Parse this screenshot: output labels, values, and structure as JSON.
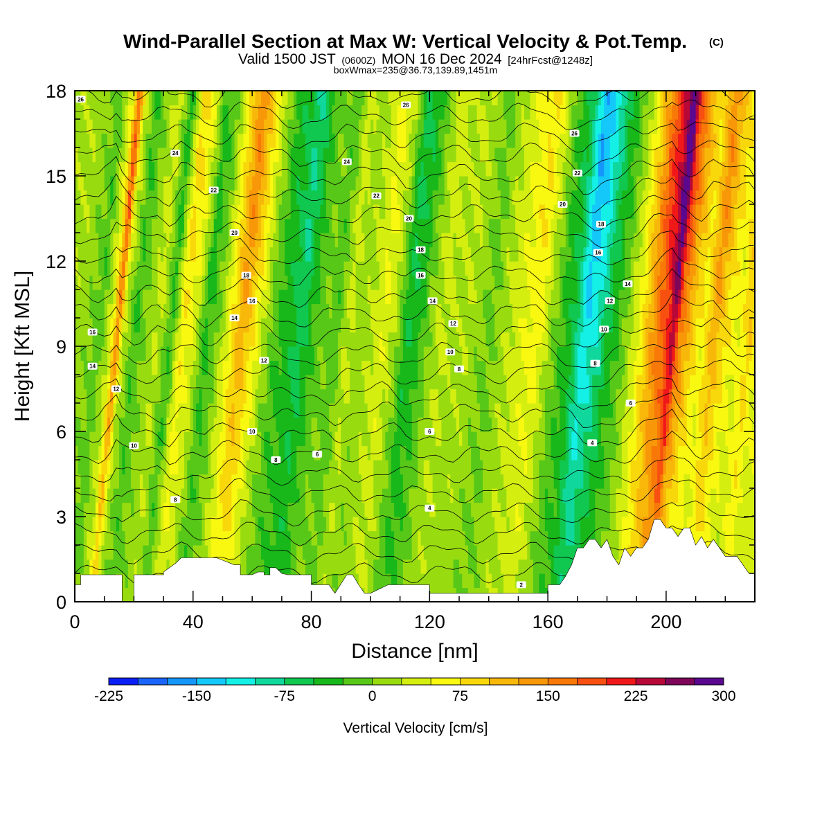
{
  "chart_data": {
    "type": "heatmap",
    "title": "Wind-Parallel Section at Max W: Vertical Velocity & Pot.Temp.",
    "title_mark": "(C)",
    "subtitle_main": "Valid 1500 JST",
    "subtitle_utc": "(0600Z)",
    "subtitle_date": "MON 16 Dec 2024",
    "subtitle_fcst": "[24hrFcst@1248z]",
    "info_line": "boxWmax=235@36.73,139.89,1451m",
    "xlabel": "Distance [nm]",
    "ylabel": "Height [Kft MSL]",
    "xlim": [
      0,
      230
    ],
    "ylim": [
      0,
      18
    ],
    "x_ticks": [
      0,
      40,
      80,
      120,
      160,
      200
    ],
    "y_ticks": [
      0,
      3,
      6,
      9,
      12,
      15,
      18
    ],
    "colorbar": {
      "label": "Vertical Velocity [cm/s]",
      "tick_values": [
        -225,
        -150,
        -75,
        0,
        75,
        150,
        225,
        300
      ],
      "tick_labels": [
        "-225",
        "-150",
        "-75",
        "0",
        "75",
        "150",
        "225",
        "300"
      ],
      "bins_start": -225,
      "bin_width": 25,
      "colors": [
        "#0a1ef5",
        "#1a64fa",
        "#1496fa",
        "#14c8fa",
        "#14f0e6",
        "#10d89c",
        "#10c850",
        "#18b81a",
        "#58c818",
        "#98dc10",
        "#d4ee10",
        "#f8f810",
        "#f8d80a",
        "#f8b80a",
        "#f89808",
        "#f87808",
        "#f85010",
        "#f01818",
        "#b80838",
        "#7e0658",
        "#5a0890"
      ]
    },
    "w_columns": {
      "x": [
        0,
        4,
        8,
        12,
        14,
        16,
        20,
        24,
        28,
        32,
        36,
        40,
        44,
        48,
        52,
        56,
        60,
        64,
        68,
        72,
        76,
        80,
        84,
        88,
        92,
        96,
        100,
        104,
        108,
        112,
        116,
        120,
        124,
        128,
        132,
        136,
        140,
        144,
        148,
        152,
        156,
        160,
        164,
        168,
        172,
        176,
        180,
        184,
        188,
        192,
        196,
        200,
        202,
        204,
        208,
        212,
        216,
        220,
        224,
        228,
        230
      ],
      "w": [
        20,
        5,
        -20,
        60,
        190,
        40,
        -30,
        10,
        40,
        -40,
        90,
        50,
        -40,
        0,
        80,
        150,
        90,
        20,
        -30,
        -50,
        -80,
        -30,
        0,
        -20,
        40,
        10,
        30,
        60,
        20,
        -60,
        -40,
        10,
        40,
        20,
        30,
        10,
        -10,
        20,
        40,
        60,
        80,
        20,
        -30,
        -60,
        -150,
        -120,
        -60,
        -20,
        30,
        100,
        180,
        240,
        310,
        200,
        120,
        70,
        150,
        90,
        60,
        120,
        70
      ]
    },
    "theta_labels": [
      {
        "x": 2,
        "y": 17.7,
        "text": "26"
      },
      {
        "x": 34,
        "y": 15.8,
        "text": "24"
      },
      {
        "x": 47,
        "y": 14.5,
        "text": "22"
      },
      {
        "x": 54,
        "y": 13.0,
        "text": "20"
      },
      {
        "x": 58,
        "y": 11.5,
        "text": "18"
      },
      {
        "x": 60,
        "y": 10.6,
        "text": "16"
      },
      {
        "x": 54,
        "y": 10.0,
        "text": "14"
      },
      {
        "x": 6,
        "y": 9.5,
        "text": "16"
      },
      {
        "x": 6,
        "y": 8.3,
        "text": "14"
      },
      {
        "x": 14,
        "y": 7.5,
        "text": "12"
      },
      {
        "x": 64,
        "y": 8.5,
        "text": "12"
      },
      {
        "x": 20,
        "y": 5.5,
        "text": "10"
      },
      {
        "x": 60,
        "y": 6.0,
        "text": "10"
      },
      {
        "x": 68,
        "y": 5.0,
        "text": "8"
      },
      {
        "x": 34,
        "y": 3.6,
        "text": "8"
      },
      {
        "x": 82,
        "y": 5.2,
        "text": "6"
      },
      {
        "x": 92,
        "y": 15.5,
        "text": "24"
      },
      {
        "x": 102,
        "y": 14.3,
        "text": "22"
      },
      {
        "x": 113,
        "y": 13.5,
        "text": "20"
      },
      {
        "x": 117,
        "y": 12.4,
        "text": "18"
      },
      {
        "x": 117,
        "y": 11.5,
        "text": "16"
      },
      {
        "x": 121,
        "y": 10.6,
        "text": "14"
      },
      {
        "x": 128,
        "y": 9.8,
        "text": "12"
      },
      {
        "x": 127,
        "y": 8.8,
        "text": "10"
      },
      {
        "x": 130,
        "y": 8.2,
        "text": "8"
      },
      {
        "x": 120,
        "y": 6.0,
        "text": "6"
      },
      {
        "x": 120,
        "y": 3.3,
        "text": "4"
      },
      {
        "x": 112,
        "y": 17.5,
        "text": "26"
      },
      {
        "x": 169,
        "y": 16.5,
        "text": "26"
      },
      {
        "x": 170,
        "y": 15.1,
        "text": "22"
      },
      {
        "x": 165,
        "y": 14.0,
        "text": "20"
      },
      {
        "x": 178,
        "y": 13.3,
        "text": "18"
      },
      {
        "x": 177,
        "y": 12.3,
        "text": "16"
      },
      {
        "x": 187,
        "y": 11.2,
        "text": "14"
      },
      {
        "x": 181,
        "y": 10.6,
        "text": "12"
      },
      {
        "x": 179,
        "y": 9.6,
        "text": "10"
      },
      {
        "x": 176,
        "y": 8.4,
        "text": "8"
      },
      {
        "x": 188,
        "y": 7.0,
        "text": "6"
      },
      {
        "x": 175,
        "y": 5.6,
        "text": "4"
      },
      {
        "x": 151,
        "y": 0.6,
        "text": "2"
      }
    ],
    "terrain": {
      "x": [
        0,
        2,
        2,
        16,
        16,
        20,
        20,
        30,
        30,
        34,
        36,
        40,
        48,
        54,
        56,
        56,
        60,
        62,
        64,
        64,
        66,
        66,
        68,
        70,
        72,
        80,
        80,
        86,
        88,
        92,
        94,
        96,
        98,
        100,
        100,
        106,
        110,
        110,
        120,
        120,
        160,
        160,
        164,
        166,
        168,
        170,
        172,
        174,
        176,
        178,
        180,
        182,
        184,
        186,
        188,
        190,
        192,
        194,
        196,
        198,
        200,
        202,
        204,
        206,
        208,
        210,
        212,
        214,
        216,
        218,
        220,
        222,
        224,
        226,
        228,
        230
      ],
      "h": [
        0.6,
        0.6,
        0.95,
        0.95,
        0.0,
        0.0,
        0.95,
        0.95,
        1.05,
        1.35,
        1.55,
        1.55,
        1.55,
        1.3,
        1.3,
        0.95,
        0.95,
        1.05,
        1.05,
        0.95,
        0.95,
        1.2,
        1.2,
        1.0,
        0.95,
        0.95,
        0.6,
        0.6,
        0.3,
        0.95,
        0.95,
        0.6,
        0.3,
        0.3,
        0.3,
        0.6,
        0.6,
        0.6,
        0.6,
        0.3,
        0.3,
        0.6,
        0.6,
        0.9,
        1.3,
        1.9,
        1.9,
        2.2,
        2.2,
        1.9,
        2.2,
        1.6,
        1.3,
        1.9,
        1.6,
        1.9,
        1.9,
        2.2,
        2.9,
        2.9,
        2.6,
        2.6,
        2.3,
        2.6,
        2.6,
        2.0,
        2.3,
        1.9,
        2.2,
        1.9,
        1.6,
        1.6,
        1.6,
        1.3,
        1.0,
        1.0
      ]
    }
  }
}
